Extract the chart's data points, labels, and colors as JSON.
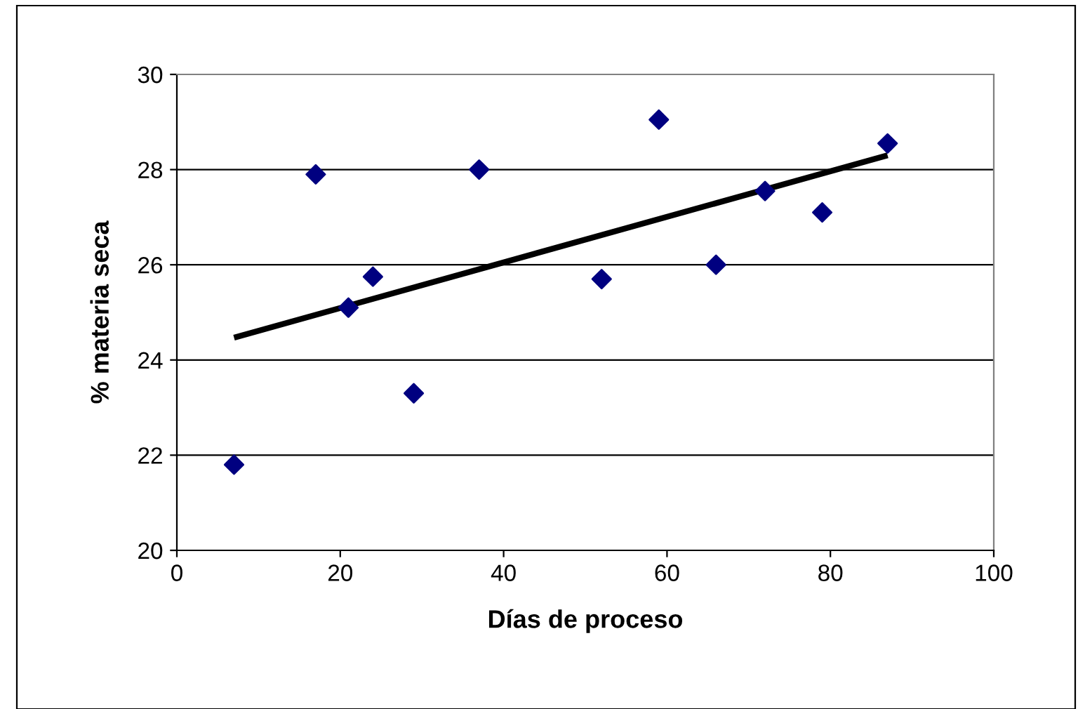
{
  "chart_data": {
    "type": "scatter",
    "xlabel": "Días de proceso",
    "ylabel": "% materia seca",
    "xlim": [
      0,
      100
    ],
    "xticks": [
      0,
      20,
      40,
      60,
      80,
      100
    ],
    "ylim": [
      20,
      30
    ],
    "yticks": [
      20,
      22,
      24,
      26,
      28,
      30
    ],
    "grid": "y",
    "series": [
      {
        "marker": "diamond",
        "color": "#000080",
        "x": [
          7,
          17,
          21,
          24,
          29,
          37,
          52,
          59,
          66,
          72,
          79,
          87
        ],
        "values": [
          21.8,
          27.9,
          25.1,
          25.75,
          23.3,
          28.0,
          25.7,
          29.05,
          26.0,
          27.55,
          27.1,
          28.55
        ]
      },
      {
        "type": "line",
        "marker": "none",
        "color": "#000000",
        "x": [
          7,
          87
        ],
        "values": [
          24.47,
          28.3
        ]
      }
    ]
  }
}
